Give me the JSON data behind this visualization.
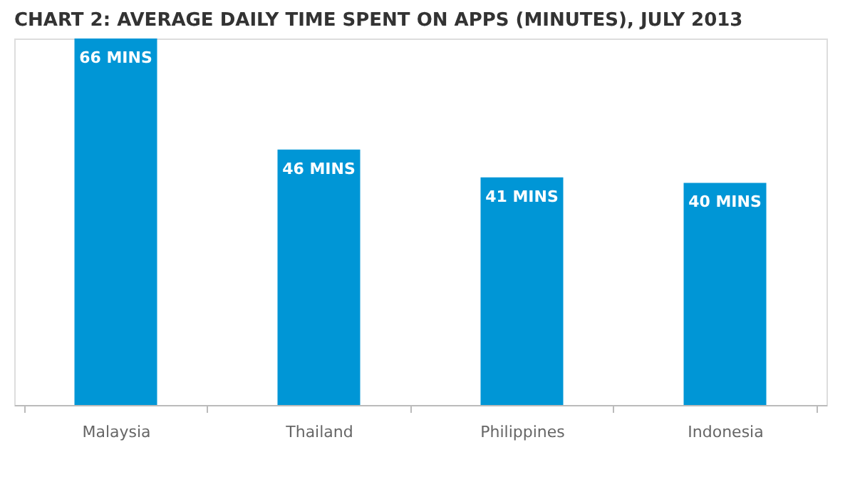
{
  "chart_data": {
    "type": "bar",
    "title": "CHART 2: AVERAGE DAILY TIME SPENT ON APPS (MINUTES), JULY 2013",
    "categories": [
      "Malaysia",
      "Thailand",
      "Philippines",
      "Indonesia"
    ],
    "values": [
      66,
      46,
      41,
      40
    ],
    "value_labels": [
      "66 MINS",
      "46 MINS",
      "41 MINS",
      "40 MINS"
    ],
    "color": "#0096d6",
    "grid": false,
    "tick_labels": "x"
  }
}
